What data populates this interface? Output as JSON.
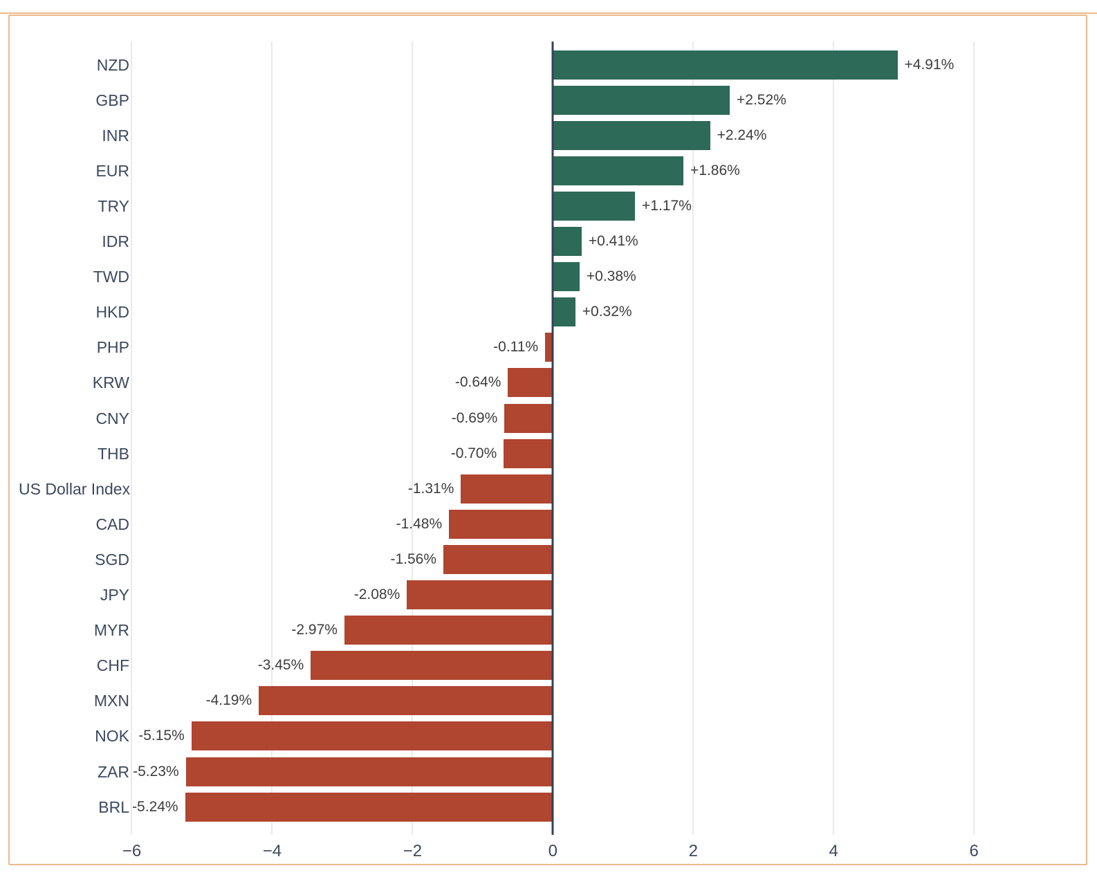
{
  "frame": {
    "border_color": "#ecb98e",
    "background": "#ffffff"
  },
  "chart_data": {
    "type": "bar",
    "orientation": "horizontal",
    "title": "",
    "xlabel": "",
    "ylabel": "",
    "categories": [
      "NZD",
      "GBP",
      "INR",
      "EUR",
      "TRY",
      "IDR",
      "TWD",
      "HKD",
      "PHP",
      "KRW",
      "CNY",
      "THB",
      "US Dollar Index",
      "CAD",
      "SGD",
      "JPY",
      "MYR",
      "CHF",
      "MXN",
      "NOK",
      "ZAR",
      "BRL"
    ],
    "values": [
      4.91,
      2.52,
      2.24,
      1.86,
      1.17,
      0.41,
      0.38,
      0.32,
      -0.11,
      -0.64,
      -0.69,
      -0.7,
      -1.31,
      -1.48,
      -1.56,
      -2.08,
      -2.97,
      -3.45,
      -4.19,
      -5.15,
      -5.23,
      -5.24
    ],
    "value_labels": [
      "+4.91%",
      "+2.52%",
      "+2.24%",
      "+1.86%",
      "+1.17%",
      "+0.41%",
      "+0.38%",
      "+0.32%",
      "-0.11%",
      "-0.64%",
      "-0.69%",
      "-0.70%",
      "-1.31%",
      "-1.48%",
      "-1.56%",
      "-2.08%",
      "-2.97%",
      "-3.45%",
      "-4.19%",
      "-5.15%",
      "-5.23%",
      "-5.24%"
    ],
    "x_ticks": [
      -6,
      -4,
      -2,
      0,
      2,
      4,
      6
    ],
    "x_tick_labels": [
      "−6",
      "−4",
      "−2",
      "0",
      "2",
      "4",
      "6"
    ],
    "xlim": [
      -6.33,
      7.27
    ],
    "grid": true,
    "legend": false,
    "colors": {
      "positive": "#2d6a58",
      "negative": "#b04530",
      "zero_line": "#34425a",
      "gridline": "#eaeaea",
      "category_label": "#3c495e",
      "value_label": "#3d3d3d",
      "tick_label": "#3c495e"
    }
  }
}
